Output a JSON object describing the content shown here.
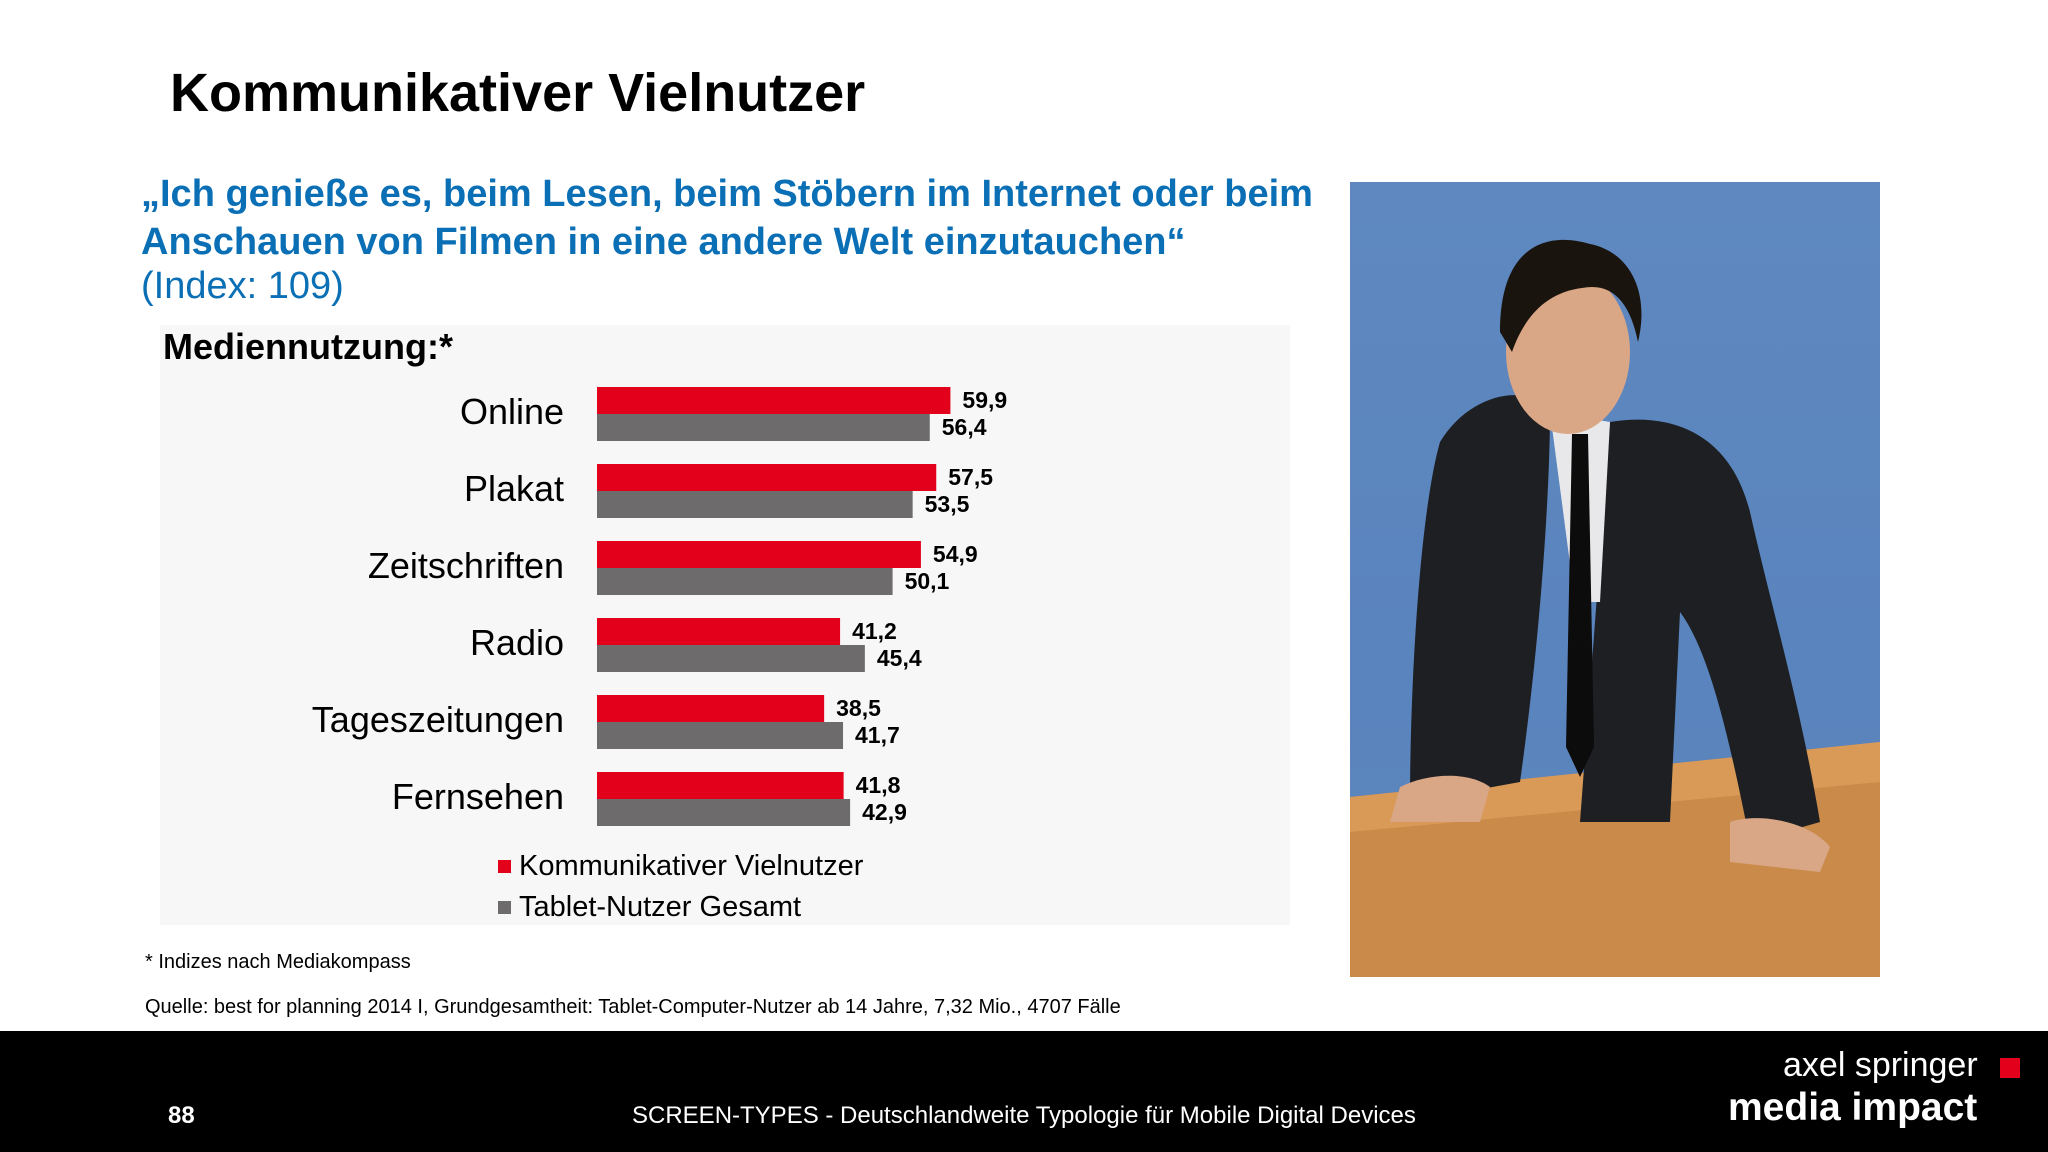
{
  "slide": {
    "title": "Kommunikativer Vielnutzer",
    "quote": "„Ich genieße es, beim Lesen, beim Stöbern im Internet oder beim Anschauen von Filmen in eine andere Welt einzutauchen“",
    "index_text": "(Index: 109)",
    "footnote": "* Indizes nach Mediakompass",
    "source": "Quelle: best for planning 2014 I, Grundgesamtheit: Tablet-Computer-Nutzer ab 14 Jahre, 7,32 Mio., 4707 Fälle"
  },
  "footer": {
    "page_number": "88",
    "text": "SCREEN-TYPES - Deutschlandweite Typologie für Mobile Digital Devices",
    "logo_line1": "axel springer",
    "logo_line2": "media impact"
  },
  "colors": {
    "series1": "#e2001a",
    "series2": "#6d6b6c",
    "quote": "#0a6fb5"
  },
  "chart_data": {
    "type": "bar",
    "orientation": "horizontal",
    "title": "Mediennutzung:*",
    "categories": [
      "Online",
      "Plakat",
      "Zeitschriften",
      "Radio",
      "Tageszeitungen",
      "Fernsehen"
    ],
    "series": [
      {
        "name": "Kommunikativer Vielnutzer",
        "values": [
          59.9,
          57.5,
          54.9,
          41.2,
          38.5,
          41.8
        ],
        "labels": [
          "59,9",
          "57,5",
          "54,9",
          "41,2",
          "38,5",
          "41,8"
        ]
      },
      {
        "name": "Tablet-Nutzer Gesamt",
        "values": [
          56.4,
          53.5,
          50.1,
          45.4,
          41.7,
          42.9
        ],
        "labels": [
          "56,4",
          "53,5",
          "50,1",
          "45,4",
          "41,7",
          "42,9"
        ]
      }
    ],
    "legend_position": "bottom",
    "grid": false
  }
}
